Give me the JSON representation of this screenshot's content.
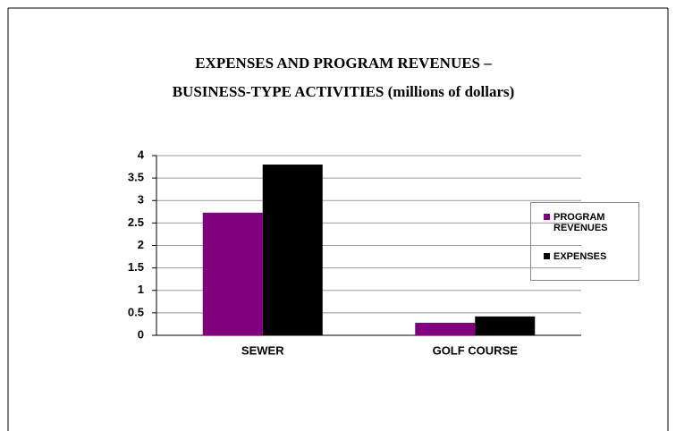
{
  "chart_data": {
    "type": "bar",
    "title": [
      "EXPENSES AND PROGRAM REVENUES –",
      "BUSINESS-TYPE ACTIVITIES (millions of dollars)"
    ],
    "categories": [
      "SEWER",
      "GOLF COURSE"
    ],
    "series": [
      {
        "name": "PROGRAM REVENUES",
        "color": "#800080",
        "values": [
          2.73,
          0.28
        ]
      },
      {
        "name": "EXPENSES",
        "color": "#000000",
        "values": [
          3.8,
          0.42
        ]
      }
    ],
    "ylim": [
      0,
      4
    ],
    "yticks": [
      0,
      0.5,
      1,
      1.5,
      2,
      2.5,
      3,
      3.5,
      4
    ],
    "grid": true,
    "legend": "right"
  }
}
